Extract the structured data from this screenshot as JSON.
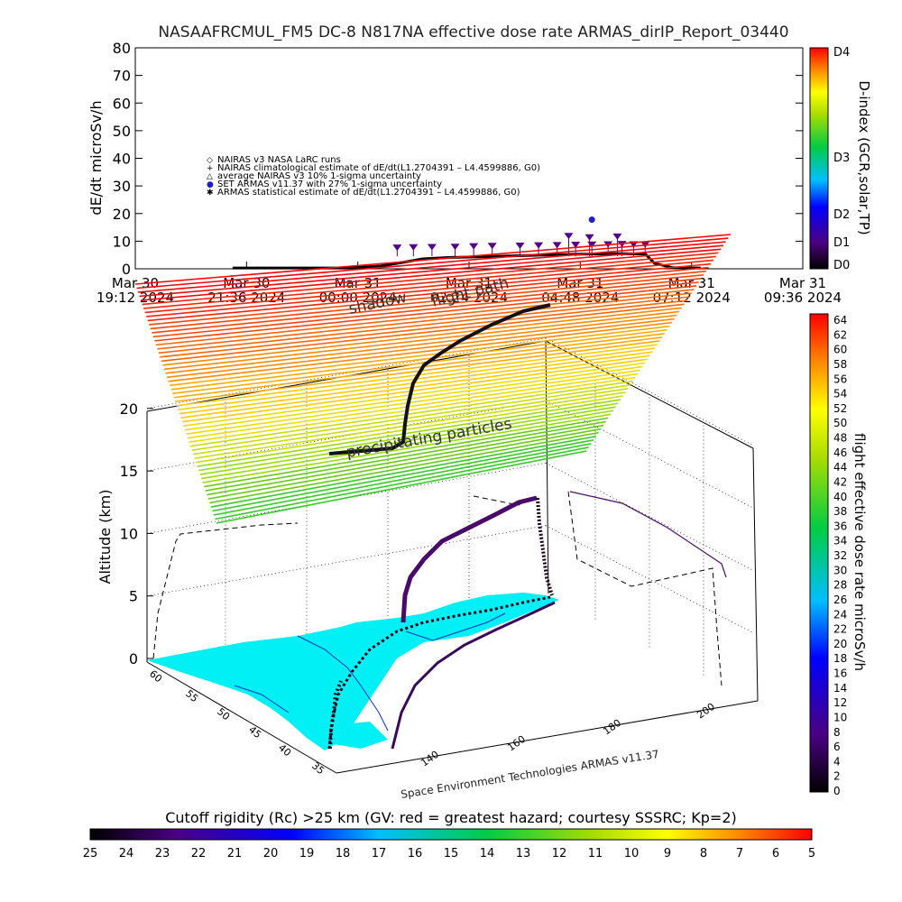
{
  "title": "NASAAFRCMUL_FM5 DC-8    N817NA effective dose rate ARMAS_dirIP_Report_03440",
  "chart_data": [
    {
      "type": "scatter",
      "ylabel": "dE/dt microSv/h",
      "ylim": [
        0,
        80
      ],
      "yticks": [
        "0",
        "10",
        "20",
        "30",
        "40",
        "50",
        "60",
        "70",
        "80"
      ],
      "xticks": [
        {
          "line1": "Mar 30",
          "line2": "19:12 2024"
        },
        {
          "line1": "Mar 30",
          "line2": "21:36 2024"
        },
        {
          "line1": "Mar 31",
          "line2": "00:00 2024"
        },
        {
          "line1": "Mar 31",
          "line2": "02:24 2024"
        },
        {
          "line1": "Mar 31",
          "line2": "04:48 2024"
        },
        {
          "line1": "Mar 31",
          "line2": "07:12 2024"
        },
        {
          "line1": "Mar 31",
          "line2": "09:36 2024"
        }
      ],
      "xlim_hours": [
        0,
        14.4
      ],
      "legend": [
        {
          "symbol": "◇",
          "text": "NAIRAS v3 NASA LaRC runs"
        },
        {
          "symbol": "+",
          "text": "NAIRAS climatological estimate of dE/dt(L1.2704391 – L4.4599886, G0)"
        },
        {
          "symbol": "△",
          "text": "average NAIRAS v3 10% 1-sigma uncertainty"
        },
        {
          "symbol": "●",
          "text": "SET ARMAS v11.37 with 27% 1-sigma uncertainty"
        },
        {
          "symbol": "✱",
          "text": "ARMAS statistical estimate of dE/dt(L1.2704391 – L4.4599886, G0)"
        }
      ],
      "right_axis_label": "D-index (GCR,solar,TP)",
      "right_axis_ticks": [
        "D0",
        "D1",
        "D2",
        "D3",
        "D4"
      ],
      "baseline_series": {
        "name": "",
        "x": [
          2.1,
          4.6,
          5.3,
          5.8,
          6.2,
          6.8,
          7.4,
          8.0,
          8.8,
          9.6,
          10.4,
          11.0,
          11.2,
          11.6,
          12.2
        ],
        "y": [
          0.3,
          0.3,
          1.0,
          2.4,
          3.6,
          4.1,
          4.3,
          4.6,
          5.0,
          5.3,
          5.5,
          5.4,
          2.0,
          0.4,
          0.3
        ]
      },
      "armas_points": {
        "x": [
          5.65,
          6.0,
          6.4,
          6.9,
          7.3,
          7.7,
          8.3,
          8.7,
          9.1,
          9.5,
          9.85,
          10.2,
          10.5,
          10.75,
          11.0,
          9.35,
          9.8,
          10.4
        ],
        "y": [
          7.8,
          7.9,
          8.0,
          8.1,
          8.3,
          8.4,
          8.5,
          8.6,
          8.7,
          8.8,
          8.9,
          9.0,
          9.1,
          9.0,
          8.9,
          12.0,
          11.5,
          11.8
        ]
      },
      "peak_point": {
        "x": 9.85,
        "y": 17.8
      }
    },
    {
      "type": "3d-trajectory",
      "zlabel": "Altitude (km)",
      "zticks": [
        "0",
        "5",
        "10",
        "15",
        "20"
      ],
      "lon_ticks": [
        "140",
        "160",
        "180",
        "200"
      ],
      "lat_ticks": [
        "60",
        "55",
        "50",
        "45",
        "40",
        "35"
      ],
      "labels": {
        "flight_path": "flight path",
        "shadow": "shadow",
        "precip": "precipitating particles"
      },
      "software": "Space Environment Technologies ARMAS v11.37",
      "dose_colorbar": {
        "label": "flight effective dose rate microSv/h",
        "min": 0,
        "max": 64,
        "ticks": [
          "0",
          "2",
          "4",
          "6",
          "8",
          "10",
          "12",
          "14",
          "16",
          "18",
          "20",
          "22",
          "24",
          "26",
          "28",
          "30",
          "32",
          "34",
          "36",
          "38",
          "40",
          "42",
          "44",
          "46",
          "48",
          "50",
          "52",
          "54",
          "56",
          "58",
          "60",
          "62",
          "64"
        ]
      }
    },
    {
      "type": "colorbar",
      "title": "Cutoff rigidity (Rc) >25 km (GV: red = greatest hazard; courtesy SSSRC; Kp=2)",
      "ticks": [
        "25",
        "24",
        "23",
        "22",
        "21",
        "20",
        "19",
        "18",
        "17",
        "16",
        "15",
        "14",
        "13",
        "12",
        "11",
        "10",
        "9",
        "8",
        "7",
        "6",
        "5"
      ]
    }
  ],
  "colors": {
    "cyan_land": "#00f0f5",
    "trajectory_dark": "#1a0014",
    "trajectory_purple": "#4a0a6a",
    "marker_purple": "#55008c",
    "marker_blue": "#2020c0",
    "box_line": "#000000"
  }
}
